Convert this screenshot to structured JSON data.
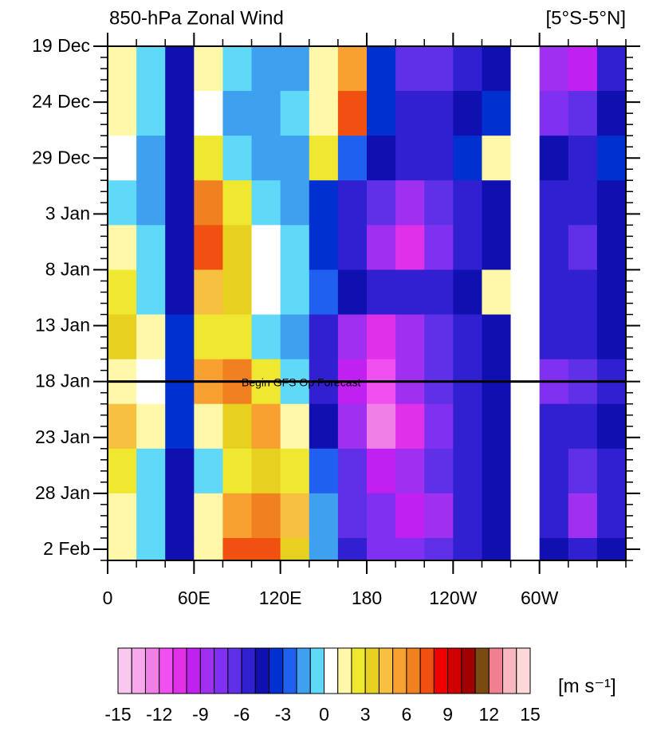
{
  "chart_data": {
    "type": "heatmap",
    "title": "850-hPa Zonal Wind",
    "subtitle": "[5°S-5°N]",
    "x": [
      10,
      30,
      50,
      70,
      90,
      110,
      130,
      150,
      170,
      190,
      210,
      230,
      250,
      270,
      290,
      310,
      330,
      350
    ],
    "y": [
      2,
      6,
      10,
      14,
      18,
      22,
      26,
      30,
      34,
      38,
      42,
      46
    ],
    "values": [
      [
        1,
        -1,
        -5,
        1,
        -1,
        -2,
        -2,
        1,
        5,
        -4,
        -7,
        -7,
        -6,
        -5,
        0,
        -9,
        -10,
        -6
      ],
      [
        1,
        -1,
        -5,
        0,
        -2,
        -2,
        -1,
        1,
        7,
        -4,
        -6,
        -6,
        -5,
        -4,
        0,
        -8,
        -7,
        -5
      ],
      [
        0,
        -2,
        -5,
        2,
        -1,
        -2,
        -2,
        2,
        -3,
        -5,
        -6,
        -6,
        -4,
        1,
        0,
        -5,
        -6,
        -4
      ],
      [
        -1,
        -2,
        -5,
        6,
        2,
        -1,
        -2,
        -4,
        -6,
        -7,
        -9,
        -7,
        -6,
        -5,
        0,
        -6,
        -6,
        -5
      ],
      [
        1,
        -1,
        -5,
        7,
        3,
        0,
        -1,
        -4,
        -6,
        -9,
        -11,
        -8,
        -6,
        -5,
        0,
        -6,
        -7,
        -5
      ],
      [
        2,
        -1,
        -5,
        4,
        3,
        0,
        -1,
        -3,
        -5,
        -6,
        -6,
        -6,
        -5,
        1,
        0,
        -6,
        -6,
        -5
      ],
      [
        3,
        1,
        -4,
        2,
        2,
        -1,
        -2,
        -6,
        -9,
        -11,
        -9,
        -7,
        -6,
        -5,
        0,
        -6,
        -6,
        -5
      ],
      [
        1,
        0,
        -4,
        5,
        6,
        2,
        -1,
        -6,
        -10,
        -12,
        -9,
        -7,
        -6,
        -5,
        0,
        -8,
        -7,
        -6
      ],
      [
        4,
        1,
        -4,
        1,
        3,
        5,
        1,
        -5,
        -9,
        -13,
        -11,
        -8,
        -6,
        -5,
        0,
        -6,
        -6,
        -5
      ],
      [
        2,
        -1,
        -5,
        -1,
        2,
        3,
        2,
        -3,
        -7,
        -10,
        -9,
        -7,
        -6,
        -5,
        0,
        -6,
        -7,
        -6
      ],
      [
        1,
        -1,
        -5,
        1,
        5,
        6,
        4,
        -2,
        -7,
        -8,
        -10,
        -9,
        -6,
        -5,
        0,
        -6,
        -9,
        -6
      ],
      [
        1,
        -1,
        -5,
        1,
        7,
        7,
        3,
        -2,
        -6,
        -8,
        -8,
        -7,
        -6,
        -5,
        0,
        -5,
        -6,
        -5
      ]
    ],
    "xlim": [
      0,
      360
    ],
    "xticks": [
      0,
      {
        "value": 60,
        "label": "60E"
      },
      {
        "value": 120,
        "label": "120E"
      },
      180,
      {
        "value": 240,
        "label": "120W"
      },
      {
        "value": 300,
        "label": "60W"
      }
    ],
    "ylim": [
      0,
      46
    ],
    "yticks": [
      {
        "value": 0,
        "label": "19 Dec"
      },
      {
        "value": 5,
        "label": "24 Dec"
      },
      {
        "value": 10,
        "label": "29 Dec"
      },
      {
        "value": 15,
        "label": "3 Jan"
      },
      {
        "value": 20,
        "label": "8 Jan"
      },
      {
        "value": 25,
        "label": "13 Jan"
      },
      {
        "value": 30,
        "label": "18 Jan"
      },
      {
        "value": 35,
        "label": "23 Jan"
      },
      {
        "value": 40,
        "label": "28 Jan"
      },
      {
        "value": 45,
        "label": "2 Feb"
      }
    ],
    "y_reversed": true,
    "annotation": {
      "text": "Begin GFS Op Forecast",
      "value": 30
    },
    "colorbar": {
      "units": "[m s⁻¹]",
      "ticks": [
        -15,
        -12,
        -9,
        -6,
        -3,
        0,
        3,
        6,
        9,
        12,
        15
      ],
      "colors": [
        "#f8c8f0",
        "#f8a8ec",
        "#f080e8",
        "#f050f0",
        "#e030e8",
        "#c020f0",
        "#a030f0",
        "#8030f0",
        "#6030e8",
        "#3020d0",
        "#1010b0",
        "#0030d0",
        "#2060f0",
        "#40a0f0",
        "#60d8f8",
        "#ffffff",
        "#fff8a8",
        "#f0e830",
        "#e8d020",
        "#f8c040",
        "#f8a030",
        "#f08020",
        "#f05010",
        "#f00000",
        "#d00000",
        "#a00000",
        "#7a4a10",
        "#f08090",
        "#f8b8c0",
        "#fcd8d8"
      ]
    }
  }
}
